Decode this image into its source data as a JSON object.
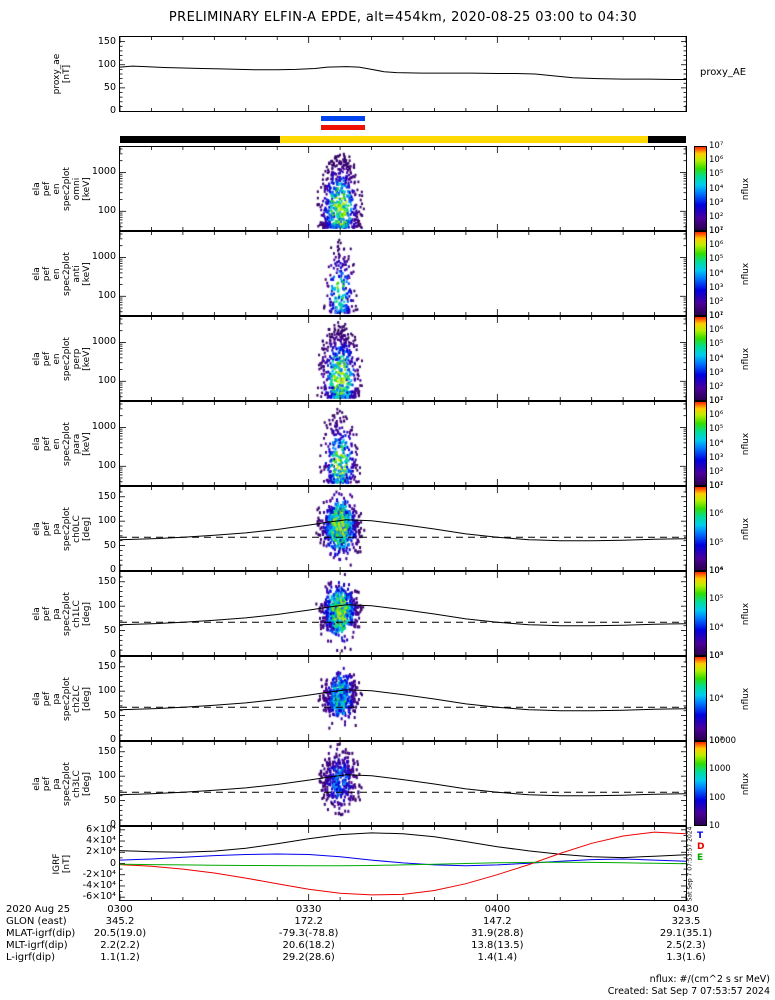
{
  "title": "PRELIMINARY ELFIN-A EPDE, alt=454km, 2020-08-25 03:00 to 04:30",
  "footer": {
    "units": "nflux: #/(cm^2 s sr MeV)",
    "created": "Created: Sat Sep  7 07:53:57 2024"
  },
  "right_labels": {
    "proxy": "proxy_AE",
    "igrf_stamp": "Sat Sep  7 07:53:57 2024"
  },
  "xaxis": {
    "tick_minutes": [
      0,
      30,
      60,
      90
    ],
    "rows": [
      {
        "label": "2020 Aug 25",
        "values": [
          "0300",
          "0330",
          "0400",
          "0430"
        ]
      },
      {
        "label": "GLON (east)",
        "values": [
          "345.2",
          "172.2",
          "147.2",
          "323.5"
        ]
      },
      {
        "label": "MLAT-igrf(dip)",
        "values": [
          "20.5(19.0)",
          "-79.3(-78.8)",
          "31.9(28.8)",
          "29.1(35.1)"
        ]
      },
      {
        "label": "MLT-igrf(dip)",
        "values": [
          "2.2(2.2)",
          "20.6(18.2)",
          "13.8(13.5)",
          "2.5(2.3)"
        ]
      },
      {
        "label": "L-igrf(dip)",
        "values": [
          "1.1(1.2)",
          "29.2(28.6)",
          "1.4(1.4)",
          "1.3(1.6)"
        ]
      }
    ]
  },
  "chart_data": [
    {
      "id": "proxy_ae",
      "type": "line",
      "ylabel_lines": [
        "proxy_ae",
        "[nT]"
      ],
      "ylim": [
        0,
        160
      ],
      "yticks": [
        0,
        50,
        100,
        150
      ],
      "ytick_minor": 10,
      "right_label": "proxy_AE",
      "x_minutes": [
        0,
        2,
        4,
        7,
        10,
        13,
        16,
        19,
        22,
        25,
        28,
        31,
        33,
        36,
        38,
        40,
        42,
        44,
        48,
        52,
        56,
        60,
        63,
        66,
        69,
        72,
        76,
        80,
        84,
        88,
        90
      ],
      "values": [
        95,
        97,
        96,
        94,
        93,
        92,
        91,
        90,
        89,
        89,
        90,
        92,
        95,
        96,
        95,
        90,
        85,
        83,
        82,
        82,
        82,
        81,
        81,
        80,
        76,
        72,
        70,
        69,
        69,
        68,
        68
      ],
      "line_color": "#000000"
    },
    {
      "id": "status_bars",
      "type": "bars",
      "bars": [
        {
          "name": "blue-bar",
          "row": 0,
          "segments": [
            {
              "color": "#0044ee",
              "start_min": 32,
              "end_min": 39
            }
          ]
        },
        {
          "name": "red-bar",
          "row": 1,
          "segments": [
            {
              "color": "#ee1100",
              "start_min": 32,
              "end_min": 39
            }
          ]
        },
        {
          "name": "black-yellow-bar",
          "row": 2,
          "segments": [
            {
              "color": "#000000",
              "start_min": 0,
              "end_min": 25.5
            },
            {
              "color": "#ffd900",
              "start_min": 25.5,
              "end_min": 84
            },
            {
              "color": "#000000",
              "start_min": 84,
              "end_min": 90
            }
          ]
        }
      ]
    },
    {
      "id": "en_spec_omni",
      "type": "spectrogram",
      "ylabel_lines": [
        "ela",
        "pef",
        "en",
        "spec2plot",
        "omni",
        "[keV]"
      ],
      "yscale": "log",
      "ylim": [
        33,
        4500
      ],
      "yticks": [
        100,
        1000
      ],
      "ytick_labels": [
        "100",
        "1000"
      ],
      "colorbar_ticks": [
        "10⁷",
        "10⁶",
        "10⁵",
        "10⁴",
        "10³",
        "10²",
        "10¹"
      ],
      "colorbar_label": "nflux",
      "burst": {
        "t_center_min": 35,
        "t_sigma_min": 1.5,
        "count": 700,
        "seed": 11,
        "strength": 1.0
      }
    },
    {
      "id": "en_spec_anti",
      "type": "spectrogram",
      "ylabel_lines": [
        "ela",
        "pef",
        "en",
        "spec2plot",
        "anti",
        "[keV]"
      ],
      "yscale": "log",
      "ylim": [
        33,
        4500
      ],
      "yticks": [
        100,
        1000
      ],
      "ytick_labels": [
        "100",
        "1000"
      ],
      "colorbar_ticks": [
        "10⁷",
        "10⁶",
        "10⁵",
        "10⁴",
        "10³",
        "10²",
        "10¹"
      ],
      "colorbar_label": "nflux",
      "burst": {
        "t_center_min": 35,
        "t_sigma_min": 1.2,
        "count": 240,
        "seed": 22,
        "strength": 0.75
      }
    },
    {
      "id": "en_spec_perp",
      "type": "spectrogram",
      "ylabel_lines": [
        "ela",
        "pef",
        "en",
        "spec2plot",
        "perp",
        "[keV]"
      ],
      "yscale": "log",
      "ylim": [
        33,
        4500
      ],
      "yticks": [
        100,
        1000
      ],
      "ytick_labels": [
        "100",
        "1000"
      ],
      "colorbar_ticks": [
        "10⁷",
        "10⁶",
        "10⁵",
        "10⁴",
        "10³",
        "10²",
        "10¹"
      ],
      "colorbar_label": "nflux",
      "burst": {
        "t_center_min": 35,
        "t_sigma_min": 1.5,
        "count": 650,
        "seed": 33,
        "strength": 1.0
      }
    },
    {
      "id": "en_spec_para",
      "type": "spectrogram",
      "ylabel_lines": [
        "ela",
        "pef",
        "en",
        "spec2plot",
        "para",
        "[keV]"
      ],
      "yscale": "log",
      "ylim": [
        33,
        4500
      ],
      "yticks": [
        100,
        1000
      ],
      "ytick_labels": [
        "100",
        "1000"
      ],
      "colorbar_ticks": [
        "10⁷",
        "10⁶",
        "10⁵",
        "10⁴",
        "10³",
        "10²",
        "10¹"
      ],
      "colorbar_label": "nflux",
      "burst": {
        "t_center_min": 35,
        "t_sigma_min": 1.4,
        "count": 420,
        "seed": 44,
        "strength": 0.9
      }
    },
    {
      "id": "pa_spec_ch0LC",
      "type": "pa-spectrogram",
      "ylabel_lines": [
        "ela",
        "pef",
        "pa",
        "spec2plot",
        "ch0LC",
        "[deg]"
      ],
      "ylim": [
        0,
        170
      ],
      "yticks": [
        0,
        50,
        100,
        150
      ],
      "ytick_minor": 10,
      "colorbar_ticks": [
        "10⁷",
        "10⁶",
        "10⁵",
        "10⁴"
      ],
      "colorbar_label": "nflux",
      "burst": {
        "t_center_min": 35,
        "t_sigma_min": 1.5,
        "count": 720,
        "pa_center": 90,
        "pa_sigma": 26,
        "seed": 55,
        "strength": 1.0
      },
      "overlay": {
        "solid": {
          "x_minutes": [
            0,
            5,
            10,
            15,
            20,
            25,
            30,
            33,
            36,
            40,
            45,
            50,
            55,
            60,
            65,
            70,
            75,
            80,
            85,
            90
          ],
          "values": [
            62,
            64,
            67,
            71,
            76,
            83,
            92,
            98,
            103,
            101,
            93,
            84,
            74,
            67,
            62,
            60,
            60,
            61,
            63,
            64
          ]
        },
        "dashed_value": 67
      }
    },
    {
      "id": "pa_spec_ch1LC",
      "type": "pa-spectrogram",
      "ylabel_lines": [
        "ela",
        "pef",
        "pa",
        "spec2plot",
        "ch1LC",
        "[deg]"
      ],
      "ylim": [
        0,
        170
      ],
      "yticks": [
        0,
        50,
        100,
        150
      ],
      "ytick_minor": 10,
      "colorbar_ticks": [
        "10⁶",
        "10⁵",
        "10⁴",
        "10³"
      ],
      "colorbar_label": "nflux",
      "burst": {
        "t_center_min": 35,
        "t_sigma_min": 1.5,
        "count": 660,
        "pa_center": 90,
        "pa_sigma": 24,
        "seed": 66,
        "strength": 0.95
      },
      "overlay": {
        "solid": {
          "x_minutes": [
            0,
            5,
            10,
            15,
            20,
            25,
            30,
            33,
            36,
            40,
            45,
            50,
            55,
            60,
            65,
            70,
            75,
            80,
            85,
            90
          ],
          "values": [
            62,
            64,
            67,
            71,
            76,
            83,
            92,
            98,
            103,
            101,
            93,
            84,
            74,
            67,
            62,
            60,
            60,
            61,
            63,
            64
          ]
        },
        "dashed_value": 67
      }
    },
    {
      "id": "pa_spec_ch2LC",
      "type": "pa-spectrogram",
      "ylabel_lines": [
        "ela",
        "pef",
        "pa",
        "spec2plot",
        "ch2LC",
        "[deg]"
      ],
      "ylim": [
        0,
        170
      ],
      "yticks": [
        0,
        50,
        100,
        150
      ],
      "ytick_minor": 10,
      "colorbar_ticks": [
        "10⁵",
        "10⁴",
        "10³"
      ],
      "colorbar_label": "nflux",
      "burst": {
        "t_center_min": 35,
        "t_sigma_min": 1.4,
        "count": 460,
        "pa_center": 90,
        "pa_sigma": 22,
        "seed": 77,
        "strength": 0.72
      },
      "overlay": {
        "solid": {
          "x_minutes": [
            0,
            5,
            10,
            15,
            20,
            25,
            30,
            33,
            36,
            40,
            45,
            50,
            55,
            60,
            65,
            70,
            75,
            80,
            85,
            90
          ],
          "values": [
            62,
            64,
            67,
            71,
            76,
            83,
            92,
            98,
            103,
            101,
            93,
            84,
            74,
            67,
            62,
            60,
            60,
            61,
            63,
            64
          ]
        },
        "dashed_value": 67
      }
    },
    {
      "id": "pa_spec_ch3LC",
      "type": "pa-spectrogram",
      "ylabel_lines": [
        "ela",
        "pef",
        "pa",
        "spec2plot",
        "ch3LC",
        "[deg]"
      ],
      "ylim": [
        0,
        170
      ],
      "yticks": [
        0,
        50,
        100,
        150
      ],
      "ytick_minor": 10,
      "colorbar_ticks": [
        "10000",
        "1000",
        "100",
        "10"
      ],
      "colorbar_label": "nflux",
      "burst": {
        "t_center_min": 35,
        "t_sigma_min": 1.6,
        "count": 400,
        "pa_center": 90,
        "pa_sigma": 30,
        "seed": 88,
        "strength": 0.5
      },
      "overlay": {
        "solid": {
          "x_minutes": [
            0,
            5,
            10,
            15,
            20,
            25,
            30,
            33,
            36,
            40,
            45,
            50,
            55,
            60,
            65,
            70,
            75,
            80,
            85,
            90
          ],
          "values": [
            62,
            64,
            67,
            71,
            76,
            83,
            92,
            98,
            103,
            101,
            93,
            84,
            74,
            67,
            62,
            60,
            60,
            61,
            63,
            64
          ]
        },
        "dashed_value": 67
      }
    },
    {
      "id": "igrf",
      "type": "line-multi",
      "ylabel_lines": [
        "IGRF",
        "[nT]"
      ],
      "ylim": [
        -65000,
        65000
      ],
      "yticks": [
        -60000,
        -40000,
        -20000,
        0,
        20000,
        40000,
        60000
      ],
      "ytick_labels": [
        "-6×10⁴",
        "-4×10⁴",
        "-2×10⁴",
        "0",
        "2×10⁴",
        "4×10⁴",
        "6×10⁴"
      ],
      "ytick_minor": 10000,
      "x_minutes": [
        0,
        5,
        10,
        15,
        20,
        25,
        30,
        35,
        40,
        45,
        50,
        55,
        60,
        65,
        70,
        75,
        80,
        85,
        90
      ],
      "series": [
        {
          "name": "B",
          "color": "#000000",
          "values": [
            23000,
            21000,
            20000,
            22000,
            27000,
            35000,
            44000,
            51500,
            54500,
            53000,
            47500,
            39000,
            30000,
            22500,
            16500,
            12000,
            10500,
            13000,
            15500
          ]
        },
        {
          "name": "T",
          "color": "#0000ee",
          "values": [
            6000,
            8000,
            11000,
            14000,
            16000,
            17000,
            16000,
            12000,
            6000,
            1000,
            -2500,
            -4000,
            -2500,
            500,
            4000,
            7000,
            8000,
            6000,
            4000
          ]
        },
        {
          "name": "D",
          "color": "#ee0000",
          "values": [
            -2000,
            -5000,
            -10000,
            -17000,
            -26000,
            -36000,
            -46000,
            -53000,
            -56000,
            -55000,
            -48000,
            -36000,
            -20000,
            -2000,
            18000,
            36000,
            49000,
            56000,
            53000
          ]
        },
        {
          "name": "E",
          "color": "#00aa00",
          "values": [
            -1500,
            -2000,
            -2500,
            -3000,
            -3500,
            -3800,
            -4000,
            -4000,
            -3500,
            -2500,
            -1200,
            0,
            1200,
            2000,
            2300,
            2000,
            1200,
            400,
            -300
          ]
        }
      ]
    }
  ]
}
